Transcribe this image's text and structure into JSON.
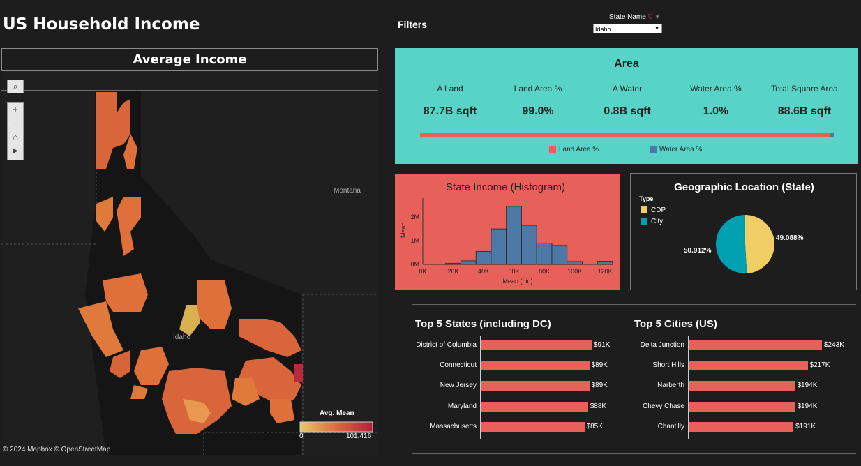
{
  "header": {
    "title": "US Household Income"
  },
  "map": {
    "title": "Average Income",
    "labels": {
      "montana": "Montana",
      "idaho": "Idaho"
    },
    "legend": {
      "title": "Avg. Mean",
      "min": "0",
      "max": "101,416"
    },
    "attribution": "© 2024 Mapbox  © OpenStreetMap"
  },
  "filters": {
    "label": "Filters",
    "state_label": "State Name",
    "state_value": "Idaho"
  },
  "area": {
    "title": "Area",
    "kpis": [
      {
        "label": "A Land",
        "value": "87.7B sqft"
      },
      {
        "label": "Land Area %",
        "value": "99.0%"
      },
      {
        "label": "A Water",
        "value": "0.8B sqft"
      },
      {
        "label": "Water Area %",
        "value": "1.0%"
      },
      {
        "label": "Total Square Area",
        "value": "88.6B sqft"
      }
    ],
    "legend": {
      "land": "Land Area %",
      "water": "Water Area %"
    },
    "land_pct": 99.0
  },
  "colors": {
    "teal": "#57d3c8",
    "red": "#e8605a",
    "blue": "#4e79a7",
    "cdp": "#f1ce63",
    "city": "#00a0b0"
  },
  "chart_data": [
    {
      "type": "bar",
      "title": "State Income (Histogram)",
      "xlabel": "Mean (bin)",
      "ylabel": "Mean",
      "x_ticks": [
        "0K",
        "20K",
        "40K",
        "60K",
        "80K",
        "100K",
        "120K"
      ],
      "y_ticks": [
        "0M",
        "1M",
        "2M"
      ],
      "bins": [
        10,
        20,
        30,
        40,
        50,
        60,
        70,
        80,
        90,
        100,
        110,
        120
      ],
      "values": [
        0,
        0.05,
        0.15,
        0.55,
        1.5,
        2.45,
        1.65,
        0.9,
        0.8,
        0.12,
        0,
        0.13
      ],
      "ylim": [
        0,
        2.8
      ]
    },
    {
      "type": "pie",
      "title": "Geographic Location (State)",
      "legend_title": "Type",
      "categories": [
        "CDP",
        "City"
      ],
      "values": [
        49.088,
        50.912
      ],
      "labels": [
        "49.088%",
        "50.912%"
      ]
    },
    {
      "type": "bar",
      "title": "Top 5 States (including DC)",
      "categories": [
        "District of Columbia",
        "Connecticut",
        "New Jersey",
        "Maryland",
        "Massachusetts"
      ],
      "values": [
        91,
        89,
        89,
        88,
        85
      ],
      "value_labels": [
        "$91K",
        "$89K",
        "$89K",
        "$88K",
        "$85K"
      ]
    },
    {
      "type": "bar",
      "title": "Top 5 Cities (US)",
      "categories": [
        "Delta Junction",
        "Short Hills",
        "Narberth",
        "Chevy Chase",
        "Chantilly"
      ],
      "values": [
        243,
        217,
        194,
        194,
        191
      ],
      "value_labels": [
        "$243K",
        "$217K",
        "$194K",
        "$194K",
        "$191K"
      ]
    }
  ]
}
